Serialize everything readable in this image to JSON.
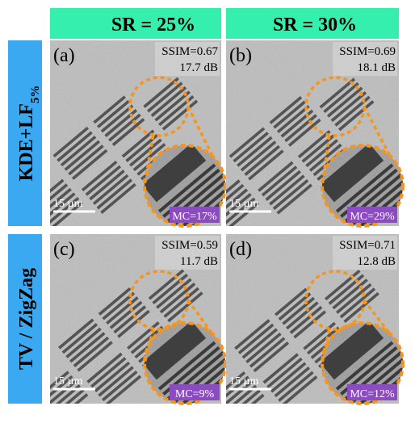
{
  "columns": [
    "SR = 25%",
    "SR = 30%"
  ],
  "rows": [
    {
      "label": "KDE+LF",
      "label_subscript": "5%"
    },
    {
      "label": "TV / ZigZag"
    }
  ],
  "panels": [
    {
      "label": "(a)",
      "ssim": "SSIM=0.67",
      "psnr": "17.7 dB",
      "scale": "15 µm",
      "mc": "MC=17%"
    },
    {
      "label": "(b)",
      "ssim": "SSIM=0.69",
      "psnr": "18.1 dB",
      "scale": "15 µm",
      "mc": "MC=29%"
    },
    {
      "label": "(c)",
      "ssim": "SSIM=0.59",
      "psnr": "11.7 dB",
      "scale": "15 µm",
      "mc": "MC=9%"
    },
    {
      "label": "(d)",
      "ssim": "SSIM=0.71",
      "psnr": "12.8 dB",
      "scale": "15 µm",
      "mc": "MC=12%"
    }
  ]
}
